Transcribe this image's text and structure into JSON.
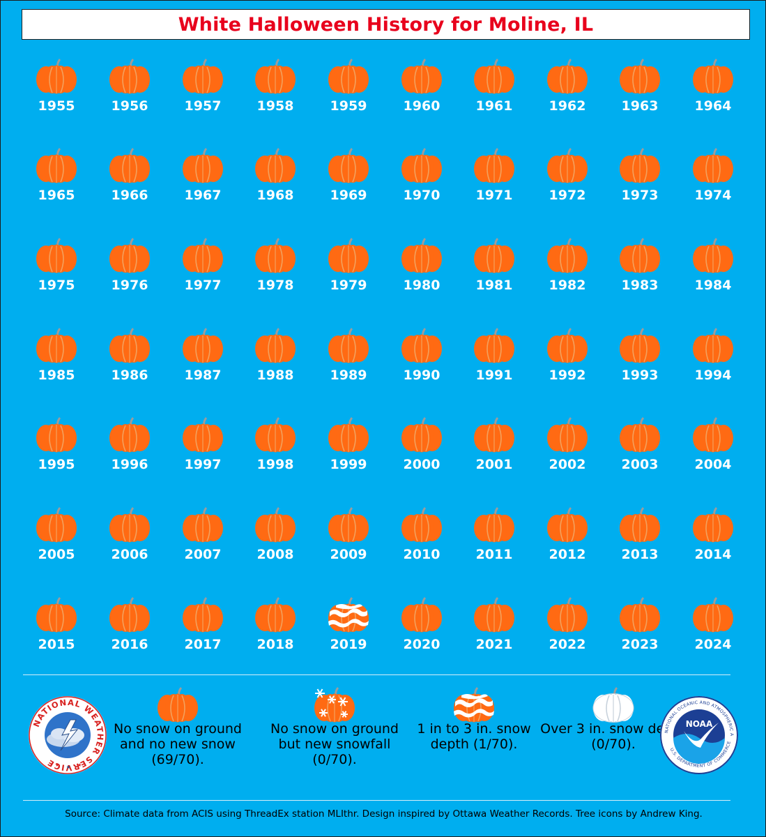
{
  "title": "White Halloween History for Moline, IL",
  "colors": {
    "background": "#00aeef",
    "title_text": "#e8001c",
    "pumpkin": "#ff6a13",
    "pumpkin_shade": "#f3a15d",
    "stem": "#9c9c9c",
    "snow": "#ffffff"
  },
  "years": [
    {
      "year": "1955",
      "icon": "pumpkin-icon"
    },
    {
      "year": "1956",
      "icon": "pumpkin-icon"
    },
    {
      "year": "1957",
      "icon": "pumpkin-icon"
    },
    {
      "year": "1958",
      "icon": "pumpkin-icon"
    },
    {
      "year": "1959",
      "icon": "pumpkin-icon"
    },
    {
      "year": "1960",
      "icon": "pumpkin-icon"
    },
    {
      "year": "1961",
      "icon": "pumpkin-icon"
    },
    {
      "year": "1962",
      "icon": "pumpkin-icon"
    },
    {
      "year": "1963",
      "icon": "pumpkin-icon"
    },
    {
      "year": "1964",
      "icon": "pumpkin-icon"
    },
    {
      "year": "1965",
      "icon": "pumpkin-icon"
    },
    {
      "year": "1966",
      "icon": "pumpkin-icon"
    },
    {
      "year": "1967",
      "icon": "pumpkin-icon"
    },
    {
      "year": "1968",
      "icon": "pumpkin-icon"
    },
    {
      "year": "1969",
      "icon": "pumpkin-icon"
    },
    {
      "year": "1970",
      "icon": "pumpkin-icon"
    },
    {
      "year": "1971",
      "icon": "pumpkin-icon"
    },
    {
      "year": "1972",
      "icon": "pumpkin-icon"
    },
    {
      "year": "1973",
      "icon": "pumpkin-icon"
    },
    {
      "year": "1974",
      "icon": "pumpkin-icon"
    },
    {
      "year": "1975",
      "icon": "pumpkin-icon"
    },
    {
      "year": "1976",
      "icon": "pumpkin-icon"
    },
    {
      "year": "1977",
      "icon": "pumpkin-icon"
    },
    {
      "year": "1978",
      "icon": "pumpkin-icon"
    },
    {
      "year": "1979",
      "icon": "pumpkin-icon"
    },
    {
      "year": "1980",
      "icon": "pumpkin-icon"
    },
    {
      "year": "1981",
      "icon": "pumpkin-icon"
    },
    {
      "year": "1982",
      "icon": "pumpkin-icon"
    },
    {
      "year": "1983",
      "icon": "pumpkin-icon"
    },
    {
      "year": "1984",
      "icon": "pumpkin-icon"
    },
    {
      "year": "1985",
      "icon": "pumpkin-icon"
    },
    {
      "year": "1986",
      "icon": "pumpkin-icon"
    },
    {
      "year": "1987",
      "icon": "pumpkin-icon"
    },
    {
      "year": "1988",
      "icon": "pumpkin-icon"
    },
    {
      "year": "1989",
      "icon": "pumpkin-icon"
    },
    {
      "year": "1990",
      "icon": "pumpkin-icon"
    },
    {
      "year": "1991",
      "icon": "pumpkin-icon"
    },
    {
      "year": "1992",
      "icon": "pumpkin-icon"
    },
    {
      "year": "1993",
      "icon": "pumpkin-icon"
    },
    {
      "year": "1994",
      "icon": "pumpkin-icon"
    },
    {
      "year": "1995",
      "icon": "pumpkin-icon"
    },
    {
      "year": "1996",
      "icon": "pumpkin-icon"
    },
    {
      "year": "1997",
      "icon": "pumpkin-icon"
    },
    {
      "year": "1998",
      "icon": "pumpkin-icon"
    },
    {
      "year": "1999",
      "icon": "pumpkin-icon"
    },
    {
      "year": "2000",
      "icon": "pumpkin-icon"
    },
    {
      "year": "2001",
      "icon": "pumpkin-icon"
    },
    {
      "year": "2002",
      "icon": "pumpkin-icon"
    },
    {
      "year": "2003",
      "icon": "pumpkin-icon"
    },
    {
      "year": "2004",
      "icon": "pumpkin-icon"
    },
    {
      "year": "2005",
      "icon": "pumpkin-icon"
    },
    {
      "year": "2006",
      "icon": "pumpkin-icon"
    },
    {
      "year": "2007",
      "icon": "pumpkin-icon"
    },
    {
      "year": "2008",
      "icon": "pumpkin-icon"
    },
    {
      "year": "2009",
      "icon": "pumpkin-icon"
    },
    {
      "year": "2010",
      "icon": "pumpkin-icon"
    },
    {
      "year": "2011",
      "icon": "pumpkin-icon"
    },
    {
      "year": "2012",
      "icon": "pumpkin-icon"
    },
    {
      "year": "2013",
      "icon": "pumpkin-icon"
    },
    {
      "year": "2014",
      "icon": "pumpkin-icon"
    },
    {
      "year": "2015",
      "icon": "pumpkin-icon"
    },
    {
      "year": "2016",
      "icon": "pumpkin-icon"
    },
    {
      "year": "2017",
      "icon": "pumpkin-icon"
    },
    {
      "year": "2018",
      "icon": "pumpkin-icon"
    },
    {
      "year": "2019",
      "icon": "snow-depth-pumpkin-icon"
    },
    {
      "year": "2020",
      "icon": "pumpkin-icon"
    },
    {
      "year": "2021",
      "icon": "pumpkin-icon"
    },
    {
      "year": "2022",
      "icon": "pumpkin-icon"
    },
    {
      "year": "2023",
      "icon": "pumpkin-icon"
    },
    {
      "year": "2024",
      "icon": "pumpkin-icon"
    }
  ],
  "legend": [
    {
      "icon": "pumpkin-icon",
      "text": "No snow on ground and no new snow (69/70)."
    },
    {
      "icon": "snowflake-pumpkin-icon",
      "text": "No snow on ground but new snowfall (0/70)."
    },
    {
      "icon": "snow-depth-pumpkin-icon",
      "text": "1 in to 3 in. snow depth (1/70)."
    },
    {
      "icon": "white-pumpkin-icon",
      "text": "Over 3 in. snow depth (0/70)."
    }
  ],
  "logos": {
    "nws_text": "NATIONAL WEATHER SERVICE",
    "noaa_center": "NOAA",
    "noaa_ring": "NATIONAL OCEANIC AND ATMOSPHERIC ADMINISTRATION",
    "noaa_ring_bottom": "U.S. DEPARTMENT OF COMMERCE"
  },
  "source": "Source: Climate data from ACIS using ThreadEx station MLIthr. Design inspired by Ottawa Weather Records. Tree icons by Andrew King."
}
